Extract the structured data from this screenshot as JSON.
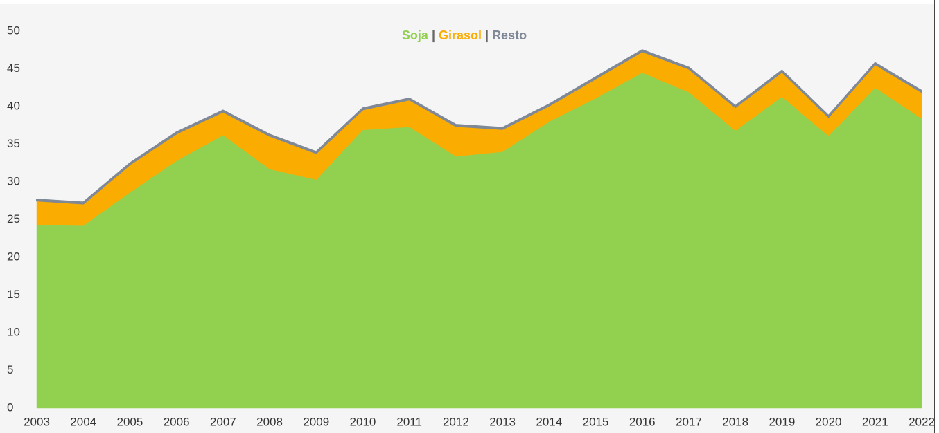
{
  "chart_data": {
    "type": "stacked_area",
    "title_separator": "|",
    "x": [
      "2003",
      "2004",
      "2005",
      "2006",
      "2007",
      "2008",
      "2009",
      "2010",
      "2011",
      "2012",
      "2013",
      "2014",
      "2015",
      "2016",
      "2017",
      "2018",
      "2019",
      "2020",
      "2021",
      "2022"
    ],
    "series": [
      {
        "name": "Soja",
        "color": "#92d050",
        "values": [
          24.3,
          24.2,
          28.6,
          32.8,
          36.2,
          31.7,
          30.3,
          36.9,
          37.3,
          33.4,
          34.0,
          38.0,
          41.1,
          44.5,
          41.9,
          36.8,
          41.3,
          36.1,
          42.5,
          38.4
        ]
      },
      {
        "name": "Girasol",
        "color": "#fbac00",
        "values": [
          3.2,
          2.9,
          3.7,
          3.6,
          3.1,
          4.4,
          3.5,
          2.7,
          3.6,
          4.0,
          3.0,
          2.1,
          2.6,
          2.8,
          3.1,
          3.1,
          3.3,
          2.5,
          3.1,
          3.5
        ]
      },
      {
        "name": "Resto",
        "color": "#7f8896",
        "values": [
          0.2,
          0.2,
          0.2,
          0.2,
          0.2,
          0.2,
          0.2,
          0.2,
          0.2,
          0.2,
          0.2,
          0.2,
          0.2,
          0.2,
          0.2,
          0.2,
          0.2,
          0.2,
          0.2,
          0.2
        ]
      }
    ],
    "ylim": [
      0,
      50
    ],
    "yticks": [
      0,
      5,
      10,
      15,
      20,
      25,
      30,
      35,
      40,
      45,
      50
    ]
  }
}
